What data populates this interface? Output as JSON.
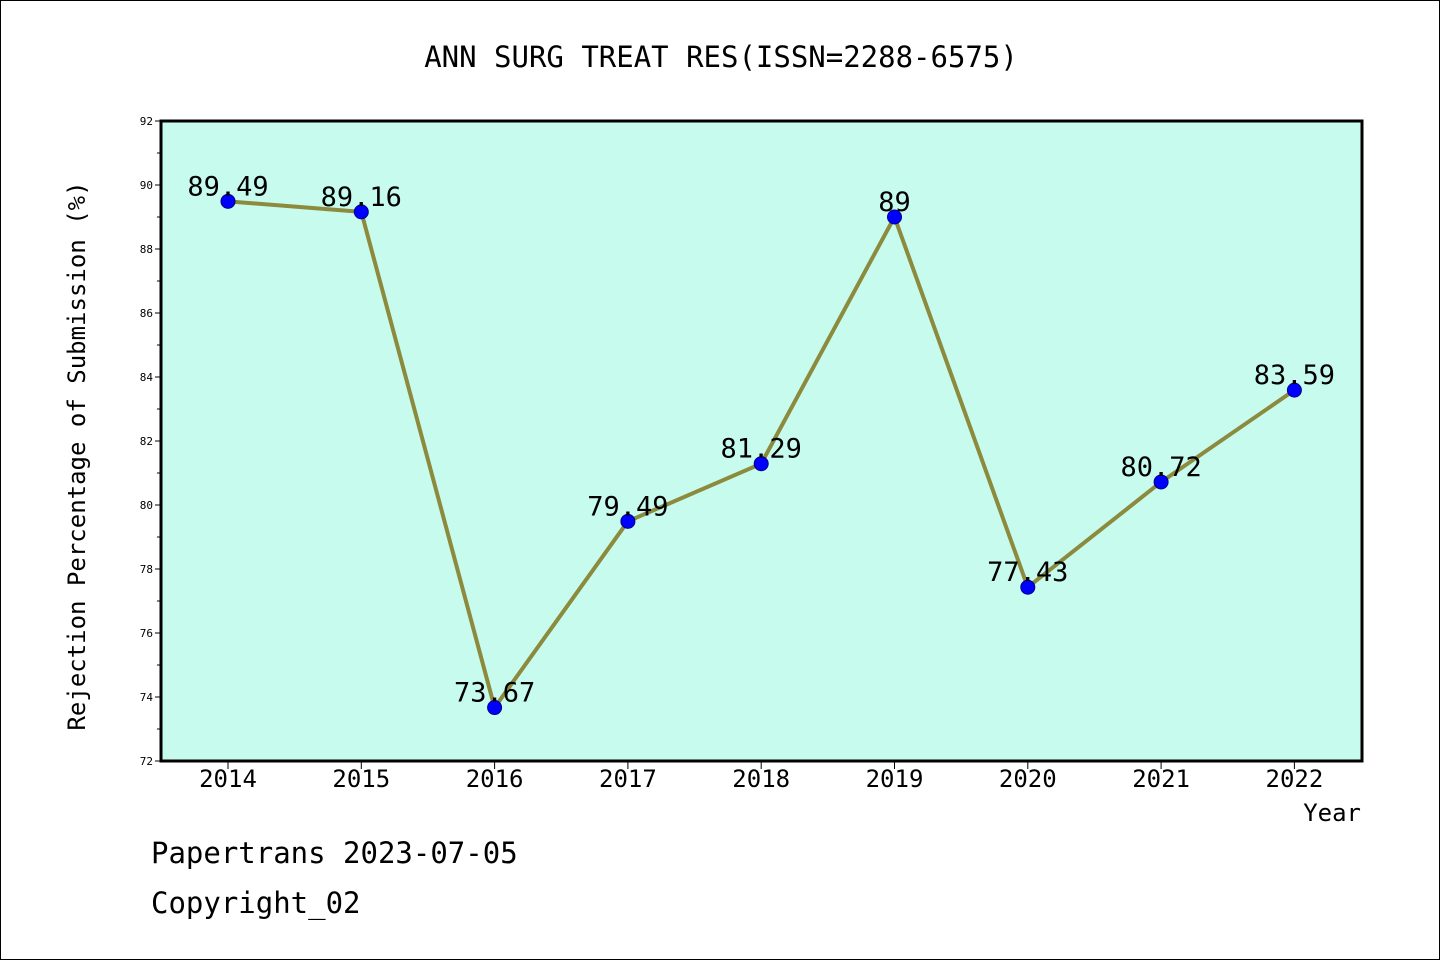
{
  "colors": {
    "plot_background": "#c7fbee",
    "line": "#8c8a3c",
    "marker": "#0000ff",
    "marker_edge": "#00008b",
    "frame": "#000000"
  },
  "chart_data": {
    "type": "line",
    "title": "ANN SURG TREAT RES(ISSN=2288-6575)",
    "xlabel": "Year",
    "ylabel": "Rejection Percentage of Submission (%)",
    "categories": [
      "2014",
      "2015",
      "2016",
      "2017",
      "2018",
      "2019",
      "2020",
      "2021",
      "2022"
    ],
    "values": [
      89.49,
      89.16,
      73.67,
      79.49,
      81.29,
      89,
      77.43,
      80.72,
      83.59
    ],
    "data_labels": [
      "89.49",
      "89.16",
      "73.67",
      "79.49",
      "81.29",
      "89",
      "77.43",
      "80.72",
      "83.59"
    ],
    "ylim": [
      72,
      92
    ],
    "yticks": [
      "72",
      "74",
      "76",
      "78",
      "80",
      "82",
      "84",
      "86",
      "88",
      "90",
      "92"
    ],
    "grid": false,
    "legend": "none"
  },
  "footer": {
    "line1": "Papertrans 2023-07-05",
    "line2": "Copyright_02"
  }
}
